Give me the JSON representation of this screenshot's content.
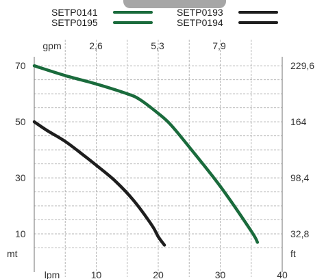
{
  "chart_data": {
    "type": "line",
    "title": "",
    "legend": [
      {
        "label": "SETP0141",
        "color": "#1a6b3c"
      },
      {
        "label": "SETP0195",
        "color": "#1a6b3c"
      },
      {
        "label": "SETP0193",
        "color": "#1e1e1e"
      },
      {
        "label": "SETP0194",
        "color": "#1e1e1e"
      }
    ],
    "x_axis": {
      "unit": "lpm",
      "range": [
        0,
        40
      ],
      "ticks": [
        "10",
        "20",
        "30",
        "40"
      ],
      "grid": true
    },
    "x_axis_top": {
      "unit": "gpm",
      "ticks": [
        "2,6",
        "5,3",
        "7,9"
      ]
    },
    "y_axis": {
      "unit": "mt",
      "range": [
        0,
        72
      ],
      "ticks": [
        "10",
        "30",
        "50",
        "70"
      ],
      "grid": true
    },
    "y_axis_right": {
      "unit": "ft",
      "ticks": [
        "32,8",
        "98,4",
        "164",
        "229,6"
      ]
    },
    "series": [
      {
        "color": "#1a6b3c",
        "x": [
          0,
          5,
          10,
          15,
          17,
          20,
          22,
          25,
          30,
          35,
          36
        ],
        "y": [
          70,
          66.5,
          63.5,
          60,
          58,
          53,
          49,
          41,
          27,
          11,
          7
        ]
      },
      {
        "color": "#1e1e1e",
        "x": [
          0,
          2,
          5,
          8,
          10,
          13,
          16,
          19,
          20,
          21
        ],
        "y": [
          50,
          47,
          43,
          38,
          34.5,
          29,
          22,
          13,
          9,
          6
        ]
      }
    ]
  }
}
